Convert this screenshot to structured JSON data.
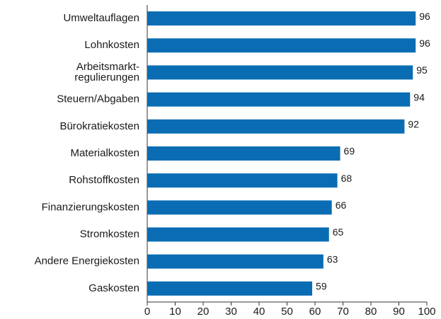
{
  "chart_data": {
    "type": "bar",
    "orientation": "horizontal",
    "categories": [
      "Umweltauflagen",
      "Lohnkosten",
      "Arbeitsmarkt-\nregulierungen",
      "Steuern/Abgaben",
      "Bürokratiekosten",
      "Materialkosten",
      "Rohstoffkosten",
      "Finanzierungskosten",
      "Stromkosten",
      "Andere Energiekosten",
      "Gaskosten"
    ],
    "values": [
      96,
      96,
      95,
      94,
      92,
      69,
      68,
      66,
      65,
      63,
      59
    ],
    "color": "#0a6db3",
    "xlim": [
      0,
      100
    ],
    "xticks": [
      0,
      10,
      20,
      30,
      40,
      50,
      60,
      70,
      80,
      90,
      100
    ],
    "grid": false
  }
}
